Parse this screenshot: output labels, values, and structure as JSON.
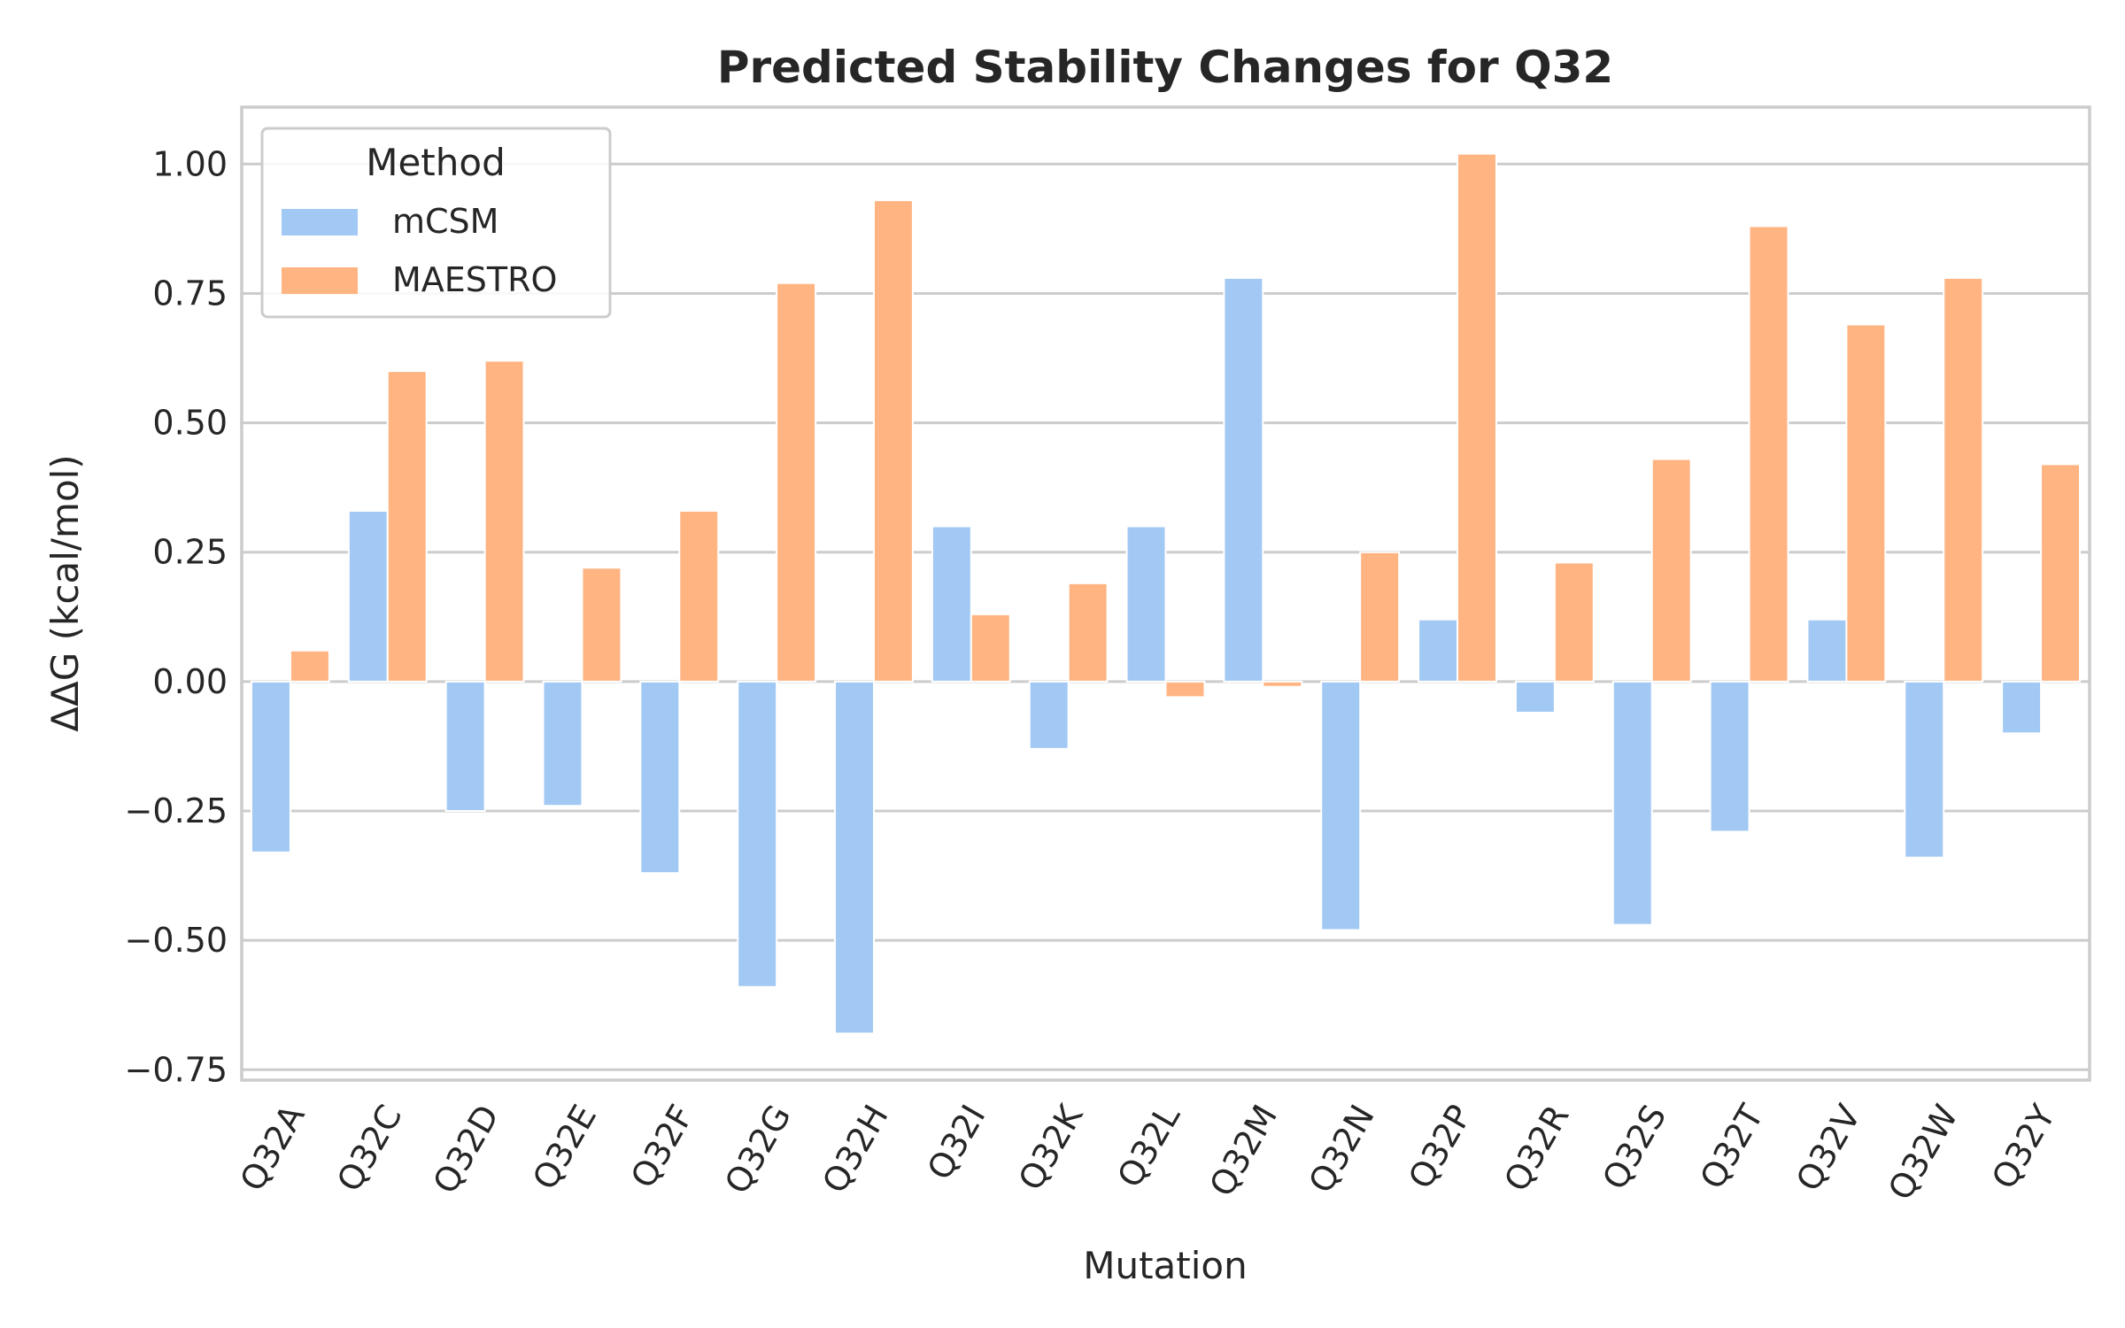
{
  "chart_data": {
    "type": "bar",
    "title": "Predicted Stability Changes for Q32",
    "xlabel": "Mutation",
    "ylabel": "ΔΔG (kcal/mol)",
    "ylim": [
      -0.77,
      1.11
    ],
    "yticks": [
      1.0,
      0.75,
      0.5,
      0.25,
      0.0,
      -0.25,
      -0.5,
      -0.75
    ],
    "ytick_labels": [
      "1.00",
      "0.75",
      "0.50",
      "0.25",
      "0.00",
      "−0.25",
      "−0.50",
      "−0.75"
    ],
    "grid": true,
    "legend": {
      "title": "Method",
      "placement": "top-left"
    },
    "categories": [
      "Q32A",
      "Q32C",
      "Q32D",
      "Q32E",
      "Q32F",
      "Q32G",
      "Q32H",
      "Q32I",
      "Q32K",
      "Q32L",
      "Q32M",
      "Q32N",
      "Q32P",
      "Q32R",
      "Q32S",
      "Q32T",
      "Q32V",
      "Q32W",
      "Q32Y"
    ],
    "series": [
      {
        "name": "mCSM",
        "color": "#a1c9f4",
        "values": [
          -0.33,
          0.33,
          -0.25,
          -0.24,
          -0.37,
          -0.59,
          -0.68,
          0.3,
          -0.13,
          0.3,
          0.78,
          -0.48,
          0.12,
          -0.06,
          -0.47,
          -0.29,
          0.12,
          -0.34,
          -0.1
        ]
      },
      {
        "name": "MAESTRO",
        "color": "#ffb482",
        "values": [
          0.06,
          0.6,
          0.62,
          0.22,
          0.33,
          0.77,
          0.93,
          0.13,
          0.19,
          -0.03,
          -0.01,
          0.25,
          1.02,
          0.23,
          0.43,
          0.88,
          0.69,
          0.78,
          0.42
        ]
      }
    ]
  }
}
